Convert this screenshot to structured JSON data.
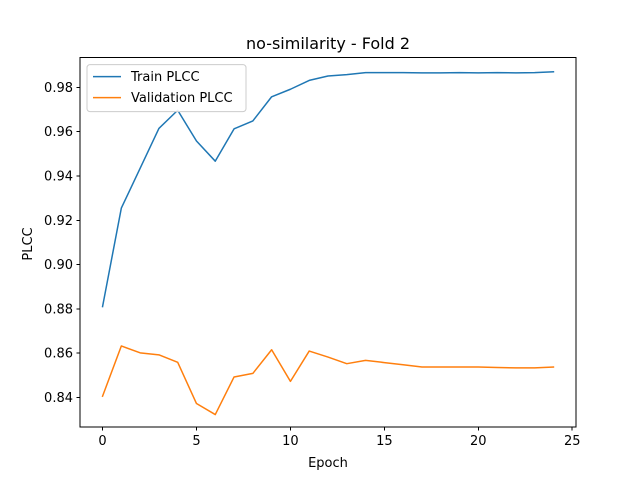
{
  "chart_data": {
    "type": "line",
    "title": "no-similarity - Fold 2",
    "xlabel": "Epoch",
    "ylabel": "PLCC",
    "xlim": [
      -1.2,
      25.2
    ],
    "ylim": [
      0.8265,
      0.9935
    ],
    "x_ticks": [
      0,
      5,
      10,
      15,
      20,
      25
    ],
    "y_ticks": [
      0.84,
      0.86,
      0.88,
      0.9,
      0.92,
      0.94,
      0.96,
      0.98
    ],
    "y_tick_labels": [
      "0.84",
      "0.86",
      "0.88",
      "0.90",
      "0.92",
      "0.94",
      "0.96",
      "0.98"
    ],
    "legend_position": "upper-left",
    "grid": false,
    "x": [
      0,
      1,
      2,
      3,
      4,
      5,
      6,
      7,
      8,
      9,
      10,
      11,
      12,
      13,
      14,
      15,
      16,
      17,
      18,
      19,
      20,
      21,
      22,
      23,
      24
    ],
    "series": [
      {
        "name": "Train PLCC",
        "color": "#1f77b4",
        "values": [
          0.881,
          0.9255,
          0.9435,
          0.9615,
          0.9697,
          0.9558,
          0.9467,
          0.9613,
          0.9649,
          0.9758,
          0.9792,
          0.9832,
          0.9852,
          0.9858,
          0.9867,
          0.9867,
          0.9867,
          0.9866,
          0.9866,
          0.9867,
          0.9866,
          0.9867,
          0.9866,
          0.9867,
          0.9871
        ]
      },
      {
        "name": "Validation PLCC",
        "color": "#ff7f0e",
        "values": [
          0.8405,
          0.8632,
          0.8601,
          0.8592,
          0.8558,
          0.8372,
          0.8322,
          0.8492,
          0.8508,
          0.8615,
          0.8472,
          0.8609,
          0.8582,
          0.8552,
          0.8567,
          0.8557,
          0.8547,
          0.8537,
          0.8537,
          0.8537,
          0.8537,
          0.8535,
          0.8533,
          0.8533,
          0.8537
        ]
      }
    ]
  }
}
